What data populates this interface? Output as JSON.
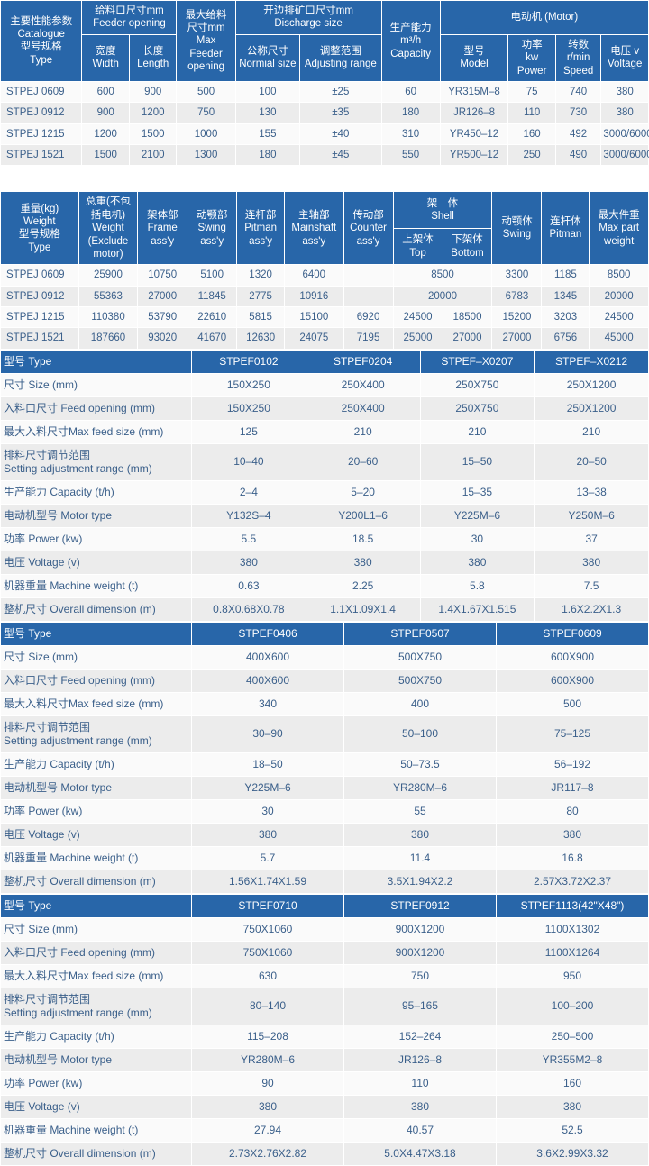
{
  "table1": {
    "headers": {
      "catalogue": "主要性能参数\nCatalogue\n型号规格\nType",
      "feeder_opening": "给料口尺寸mm\nFeeder opening",
      "width": "宽度\nWidth",
      "length": "长度\nLength",
      "max_feeder": "最大给料\n尺寸mm\nMax\nFeeder\nopening",
      "discharge": "开边排矿口尺寸mm\nDischarge size",
      "nominal": "公称尺寸\nNormial size",
      "adjusting": "调整范围\nAdjusting range",
      "capacity": "生产能力\nm³/h\nCapacity",
      "motor": "电动机 (Motor)",
      "model": "型号\nModel",
      "power": "功率\nkw\nPower",
      "speed": "转数\nr/min\nSpeed",
      "voltage": "电压 v\nVoltage"
    },
    "rows": [
      {
        "type": "STPEJ 0609",
        "width": "600",
        "length": "900",
        "maxfeed": "500",
        "nominal": "100",
        "adj": "±25",
        "cap": "60",
        "model": "YR315M–8",
        "power": "75",
        "speed": "740",
        "volt": "380"
      },
      {
        "type": "STPEJ 0912",
        "width": "900",
        "length": "1200",
        "maxfeed": "750",
        "nominal": "130",
        "adj": "±35",
        "cap": "180",
        "model": "JR126–8",
        "power": "110",
        "speed": "730",
        "volt": "380"
      },
      {
        "type": "STPEJ 1215",
        "width": "1200",
        "length": "1500",
        "maxfeed": "1000",
        "nominal": "155",
        "adj": "±40",
        "cap": "310",
        "model": "YR450–12",
        "power": "160",
        "speed": "492",
        "volt": "3000/6000"
      },
      {
        "type": "STPEJ 1521",
        "width": "1500",
        "length": "2100",
        "maxfeed": "1300",
        "nominal": "180",
        "adj": "±45",
        "cap": "550",
        "model": "YR500–12",
        "power": "250",
        "speed": "490",
        "volt": "3000/6000"
      }
    ]
  },
  "table2": {
    "headers": {
      "weight": "重量(kg)\nWeight\n型号规格\nType",
      "total": "总重(不包\n括电机)\nWeight\n(Exclude\nmotor)",
      "frame": "架体部\nFrame\nass'y",
      "swing": "动颚部\nSwing\nass'y",
      "pitman": "连杆部\nPitman\nass'y",
      "mainshaft": "主轴部\nMainshaft\nass'y",
      "counter": "传动部\nCounter\nass'y",
      "shell": "架　体\nShell",
      "top": "上架体\nTop",
      "bottom": "下架体\nBottom",
      "swing2": "动颚体\nSwing",
      "pitman2": "连杆体\nPitman",
      "maxpart": "最大件重\nMax part\nweight"
    },
    "rows": [
      {
        "type": "STPEJ 0609",
        "total": "25900",
        "frame": "10750",
        "swing": "5100",
        "pitman": "1320",
        "mainshaft": "6400",
        "counter": "",
        "top": "8500",
        "bottom": "",
        "swing2": "3300",
        "pitman2": "1185",
        "maxpart": "8500",
        "shellspan": true
      },
      {
        "type": "STPEJ 0912",
        "total": "55363",
        "frame": "27000",
        "swing": "11845",
        "pitman": "2775",
        "mainshaft": "10916",
        "counter": "",
        "top": "20000",
        "bottom": "",
        "swing2": "6783",
        "pitman2": "1345",
        "maxpart": "20000",
        "shellspan": true
      },
      {
        "type": "STPEJ 1215",
        "total": "110380",
        "frame": "53790",
        "swing": "22610",
        "pitman": "5815",
        "mainshaft": "15100",
        "counter": "6920",
        "top": "24500",
        "bottom": "18500",
        "swing2": "15200",
        "pitman2": "3203",
        "maxpart": "24500",
        "shellspan": false
      },
      {
        "type": "STPEJ 1521",
        "total": "187660",
        "frame": "93020",
        "swing": "41670",
        "pitman": "12630",
        "mainshaft": "24075",
        "counter": "7195",
        "top": "25000",
        "bottom": "27000",
        "swing2": "27000",
        "pitman2": "6756",
        "maxpart": "45000",
        "shellspan": false
      }
    ]
  },
  "spec_labels": {
    "type": "型号 Type",
    "size": "尺寸 Size (mm)",
    "feed": "入料口尺寸 Feed opening (mm)",
    "maxfeed": "最大入料尺寸Max feed size (mm)",
    "range": "排料尺寸调节范围\nSetting adjustment range (mm)",
    "cap": "生产能力 Capacity (t/h)",
    "motor": "电动机型号 Motor type",
    "power": "功率 Power (kw)",
    "volt": "电压 Voltage (v)",
    "mweight": "机器重量 Machine weight (t)",
    "overall": "整机尺寸 Overall dimension (m)"
  },
  "spec_a": {
    "cols": [
      "STPEF0102",
      "STPEF0204",
      "STPEF–X0207",
      "STPEF–X0212"
    ],
    "size": [
      "150X250",
      "250X400",
      "250X750",
      "250X1200"
    ],
    "feed": [
      "150X250",
      "250X400",
      "250X750",
      "250X1200"
    ],
    "maxfeed": [
      "125",
      "210",
      "210",
      "210"
    ],
    "range": [
      "10–40",
      "20–60",
      "15–50",
      "20–50"
    ],
    "cap": [
      "2–4",
      "5–20",
      "15–35",
      "13–38"
    ],
    "motor": [
      "Y132S–4",
      "Y200L1–6",
      "Y225M–6",
      "Y250M–6"
    ],
    "power": [
      "5.5",
      "18.5",
      "30",
      "37"
    ],
    "volt": [
      "380",
      "380",
      "380",
      "380"
    ],
    "mweight": [
      "0.63",
      "2.25",
      "5.8",
      "7.5"
    ],
    "overall": [
      "0.8X0.68X0.78",
      "1.1X1.09X1.4",
      "1.4X1.67X1.515",
      "1.6X2.2X1.3"
    ]
  },
  "spec_b": {
    "cols": [
      "STPEF0406",
      "STPEF0507",
      "STPEF0609"
    ],
    "size": [
      "400X600",
      "500X750",
      "600X900"
    ],
    "feed": [
      "400X600",
      "500X750",
      "600X900"
    ],
    "maxfeed": [
      "340",
      "400",
      "500"
    ],
    "range": [
      "30–90",
      "50–100",
      "75–125"
    ],
    "cap": [
      "18–50",
      "50–73.5",
      "56–192"
    ],
    "motor": [
      "Y225M–6",
      "YR280M–6",
      "JR117–8"
    ],
    "power": [
      "30",
      "55",
      "80"
    ],
    "volt": [
      "380",
      "380",
      "380"
    ],
    "mweight": [
      "5.7",
      "11.4",
      "16.8"
    ],
    "overall": [
      "1.56X1.74X1.59",
      "3.5X1.94X2.2",
      "2.57X3.72X2.37"
    ]
  },
  "spec_c": {
    "cols": [
      "STPEF0710",
      "STPEF0912",
      "STPEF1113(42\"X48\")"
    ],
    "size": [
      "750X1060",
      "900X1200",
      "1100X1302"
    ],
    "feed": [
      "750X1060",
      "900X1200",
      "1100X1264"
    ],
    "maxfeed": [
      "630",
      "750",
      "950"
    ],
    "range": [
      "80–140",
      "95–165",
      "100–200"
    ],
    "cap": [
      "115–208",
      "152–264",
      "250–500"
    ],
    "motor": [
      "YR280M–6",
      "JR126–8",
      "YR355M2–8"
    ],
    "power": [
      "90",
      "110",
      "160"
    ],
    "volt": [
      "380",
      "380",
      "380"
    ],
    "mweight": [
      "27.94",
      "40.57",
      "52.5"
    ],
    "overall": [
      "2.73X2.76X2.82",
      "5.0X4.47X3.18",
      "3.6X2.99X3.32"
    ]
  }
}
